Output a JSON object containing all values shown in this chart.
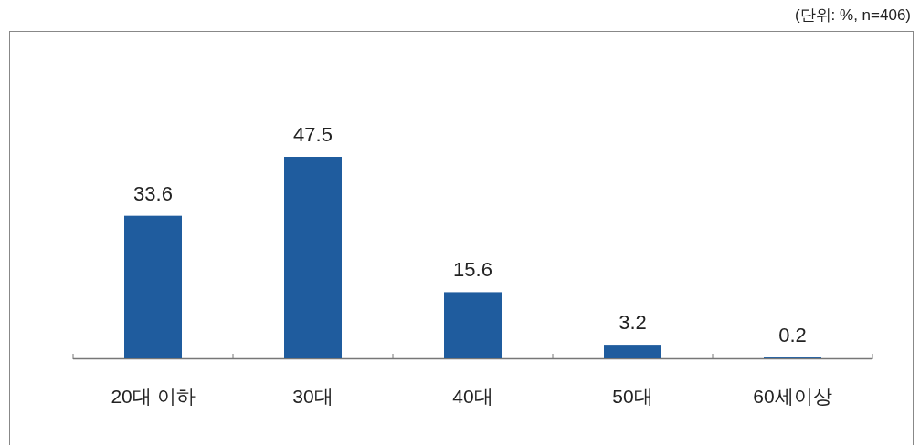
{
  "chart_data": {
    "type": "bar",
    "annotations": [
      "(단위: %, n=406)"
    ],
    "categories": [
      "20대 이하",
      "30대",
      "40대",
      "50대",
      "60세이상"
    ],
    "values": [
      33.6,
      47.5,
      15.6,
      3.2,
      0.2
    ],
    "color": "#1f5c9e",
    "data_labels": true
  }
}
